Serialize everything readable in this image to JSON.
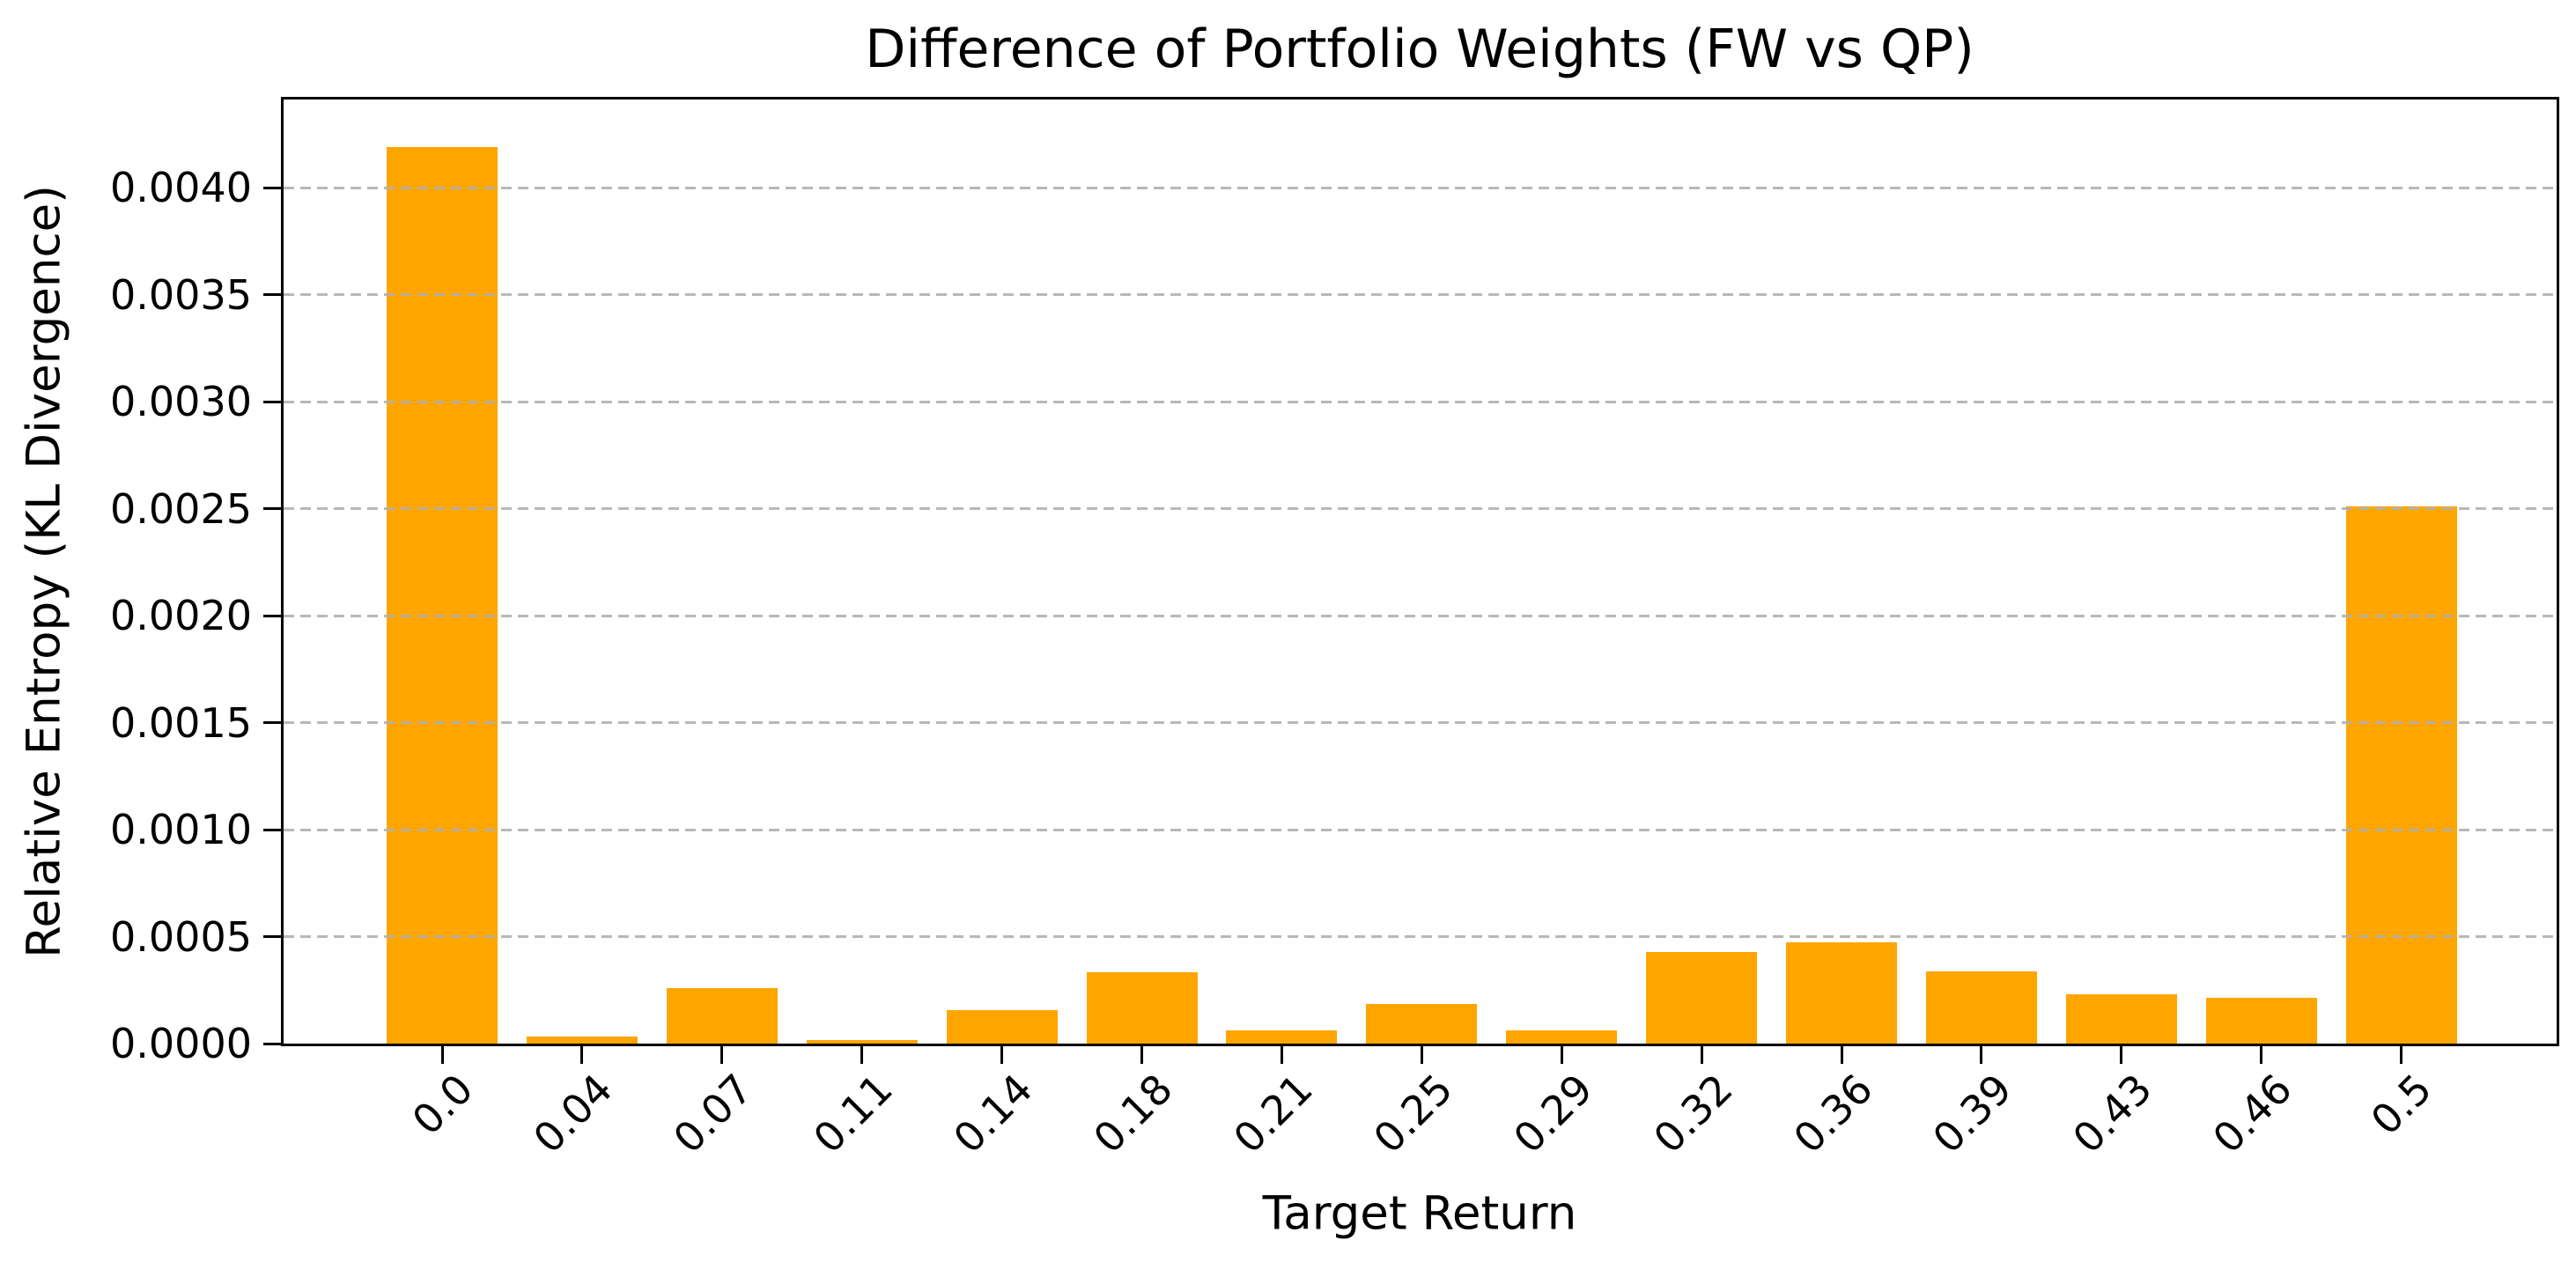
{
  "chart_data": {
    "type": "bar",
    "title": "Difference of Portfolio Weights (FW vs QP)",
    "xlabel": "Target Return",
    "ylabel": "Relative Entropy (KL Divergence)",
    "categories": [
      "0.0",
      "0.04",
      "0.07",
      "0.11",
      "0.14",
      "0.18",
      "0.21",
      "0.25",
      "0.29",
      "0.32",
      "0.36",
      "0.39",
      "0.43",
      "0.46",
      "0.5"
    ],
    "values": [
      0.00419,
      3.3e-05,
      0.00026,
      1.6e-05,
      0.000155,
      0.000335,
      6e-05,
      0.000185,
      6.2e-05,
      0.00043,
      0.000473,
      0.000337,
      0.000232,
      0.000215,
      0.00251
    ],
    "yticks": [
      0.0,
      0.0005,
      0.001,
      0.0015,
      0.002,
      0.0025,
      0.003,
      0.0035,
      0.004
    ],
    "ytick_labels": [
      "0.0000",
      "0.0005",
      "0.0010",
      "0.0015",
      "0.0020",
      "0.0025",
      "0.0030",
      "0.0035",
      "0.0040"
    ],
    "ylim": [
      0,
      0.004412
    ],
    "x_tick_rotation": 45,
    "grid": "horizontal-dashed",
    "legend": null,
    "colors": {
      "bar": "#FFA500",
      "grid": "#b0b0b0",
      "text": "#000000",
      "background": "#ffffff",
      "spine": "#000000"
    }
  }
}
